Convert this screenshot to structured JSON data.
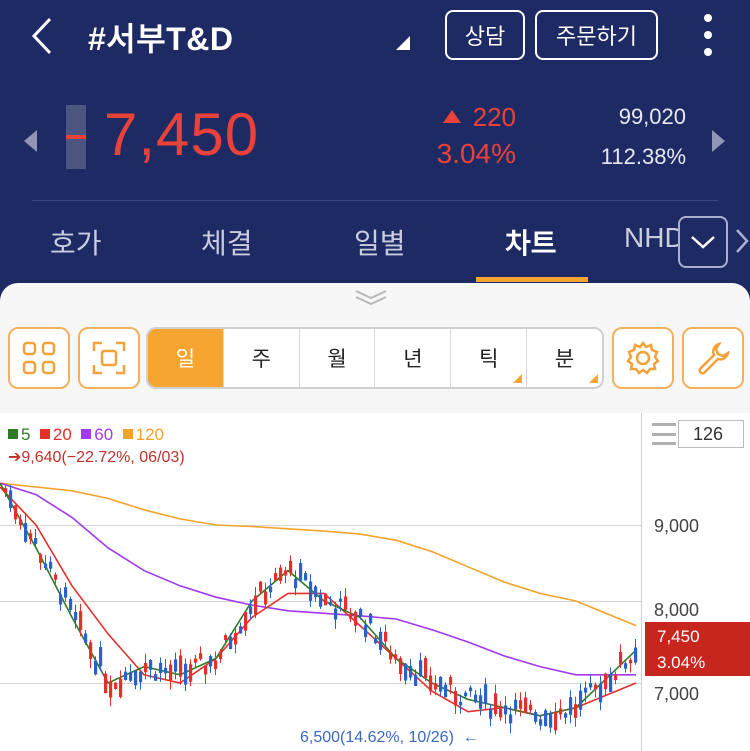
{
  "header": {
    "title": "#서부T&D",
    "consult_label": "상담",
    "order_label": "주문하기"
  },
  "quote": {
    "price": "7,450",
    "change": "220",
    "change_pct": "3.04%",
    "volume": "99,020",
    "volume_pct": "112.38%"
  },
  "tabs": [
    "호가",
    "체결",
    "일별",
    "차트",
    "NHD"
  ],
  "active_tab": "차트",
  "periods": [
    "일",
    "주",
    "월",
    "년",
    "틱",
    "분"
  ],
  "active_period": "일",
  "chart": {
    "legend": [
      {
        "label": "5",
        "color": "#2f7a27"
      },
      {
        "label": "20",
        "color": "#e3302a"
      },
      {
        "label": "60",
        "color": "#a238f0"
      },
      {
        "label": "120",
        "color": "#f4a229"
      }
    ],
    "max_label": "9,640(−22.72%, 06/03)",
    "min_label": "6,500(14.62%, 10/26)",
    "y_ticks": [
      "9,000",
      "8,000",
      "7,000"
    ],
    "current_price": "7,450",
    "current_pct": "3.04%",
    "bar_count": "126"
  },
  "colors": {
    "header_bg": "#1e2a63",
    "up": "#e8423a",
    "accent": "#f6a531",
    "down": "#3a68c4"
  },
  "chart_data": {
    "type": "candlestick",
    "y_ticks": [
      9000,
      8000,
      7000
    ],
    "max": {
      "value": 9640,
      "pct": -22.72,
      "date": "06/03"
    },
    "min": {
      "value": 6500,
      "pct": 14.62,
      "date": "10/26"
    },
    "last_close": 7450,
    "ma_series": [
      "5",
      "20",
      "60",
      "120"
    ],
    "ma120": [
      9550,
      9500,
      9450,
      9350,
      9200,
      9080,
      9000,
      8980,
      8950,
      8920,
      8880,
      8800,
      8650,
      8450,
      8250,
      8100,
      8000,
      7700
    ],
    "ma60": [
      9550,
      9400,
      9100,
      8700,
      8400,
      8200,
      8050,
      7950,
      7880,
      7850,
      7820,
      7780,
      7650,
      7500,
      7330,
      7200,
      7100,
      7100
    ],
    "ma20": [
      9500,
      9000,
      8200,
      7600,
      7100,
      7000,
      7300,
      7800,
      8100,
      8100,
      7700,
      7300,
      6900,
      6650,
      6700,
      6600,
      6700,
      7000
    ],
    "ma5": [
      9550,
      8700,
      7800,
      7000,
      7200,
      7100,
      7300,
      8000,
      8400,
      8000,
      7800,
      7300,
      7000,
      6800,
      6700,
      6600,
      6700,
      7400
    ],
    "ma_x": [
      0,
      36,
      72,
      108,
      144,
      180,
      216,
      252,
      288,
      324,
      360,
      396,
      432,
      468,
      504,
      540,
      576,
      636
    ]
  }
}
